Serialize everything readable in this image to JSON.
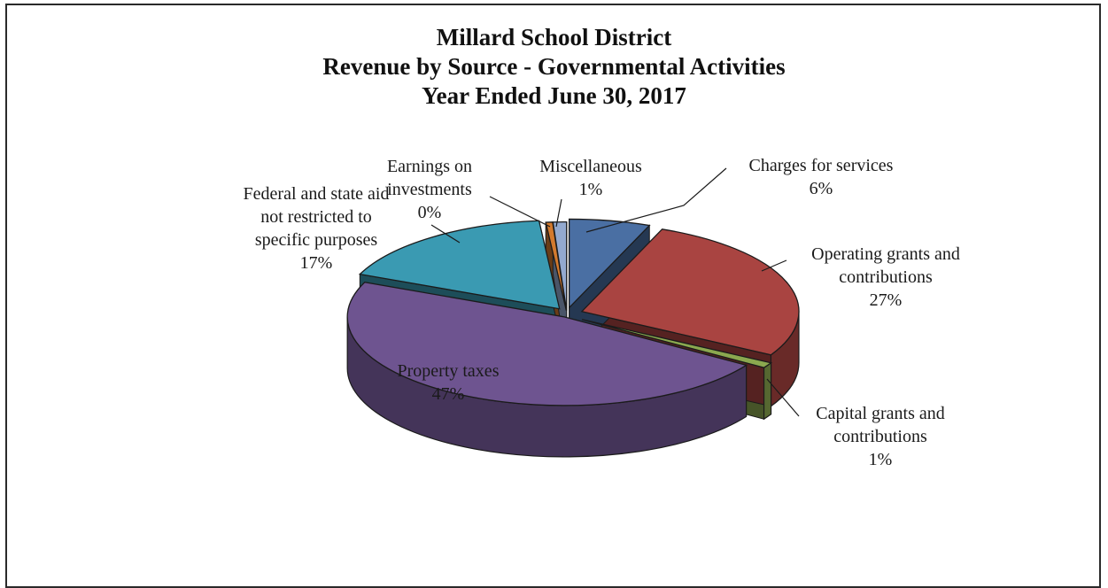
{
  "chart_data": {
    "type": "pie",
    "title": [
      "Millard School District",
      "Revenue by Source - Governmental Activities",
      "Year Ended June 30, 2017"
    ],
    "slices": [
      {
        "key": "charges",
        "label": [
          "Charges for services"
        ],
        "pct_label": "6%",
        "value": 6,
        "color": "#4a6fa3"
      },
      {
        "key": "operating",
        "label": [
          "Operating grants and",
          "contributions"
        ],
        "pct_label": "27%",
        "value": 27,
        "color": "#a94441"
      },
      {
        "key": "capital",
        "label": [
          "Capital grants and",
          "contributions"
        ],
        "pct_label": "1%",
        "value": 1,
        "color": "#8ba84f"
      },
      {
        "key": "property",
        "label": [
          "Property taxes"
        ],
        "pct_label": "47%",
        "value": 47,
        "color": "#6e5490"
      },
      {
        "key": "federal",
        "label": [
          "Federal and state aid",
          "not restricted to",
          "specific purposes"
        ],
        "pct_label": "17%",
        "value": 17,
        "color": "#3a9ab2"
      },
      {
        "key": "earnings",
        "label": [
          "Earnings on",
          "investments"
        ],
        "pct_label": "0%",
        "value": 0.5,
        "color": "#d37a2e"
      },
      {
        "key": "misc",
        "label": [
          "Miscellaneous"
        ],
        "pct_label": "1%",
        "value": 1,
        "color": "#93a9cf"
      }
    ]
  }
}
